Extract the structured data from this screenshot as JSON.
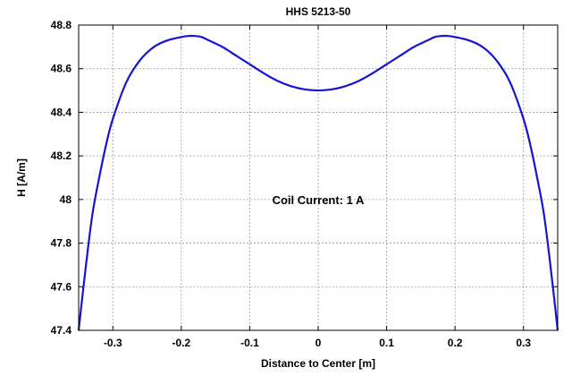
{
  "chart_data": {
    "type": "line",
    "title": "HHS 5213-50",
    "xlabel": "Distance to Center [m]",
    "ylabel": "H [A/m]",
    "annotation": "Coil Current: 1 A",
    "xlim": [
      -0.35,
      0.35
    ],
    "ylim": [
      47.4,
      48.8
    ],
    "xticks": [
      -0.3,
      -0.2,
      -0.1,
      0,
      0.1,
      0.2,
      0.3
    ],
    "xtick_labels": [
      "-0.3",
      "-0.2",
      "-0.1",
      "0",
      "0.1",
      "0.2",
      "0.3"
    ],
    "yticks": [
      47.4,
      47.6,
      47.8,
      48,
      48.2,
      48.4,
      48.6,
      48.8
    ],
    "ytick_labels": [
      "47.4",
      "47.6",
      "47.8",
      "48",
      "48.2",
      "48.4",
      "48.6",
      "48.8"
    ],
    "grid": true,
    "line_color": "#1414d2",
    "series": [
      {
        "x": [
          -0.35,
          -0.34,
          -0.33,
          -0.32,
          -0.31,
          -0.3,
          -0.28,
          -0.26,
          -0.24,
          -0.22,
          -0.2,
          -0.19,
          -0.18,
          -0.17,
          -0.16,
          -0.14,
          -0.12,
          -0.1,
          -0.08,
          -0.06,
          -0.04,
          -0.02,
          0.0,
          0.02,
          0.04,
          0.06,
          0.08,
          0.1,
          0.12,
          0.14,
          0.16,
          0.17,
          0.18,
          0.19,
          0.2,
          0.22,
          0.24,
          0.26,
          0.28,
          0.3,
          0.31,
          0.32,
          0.33,
          0.34,
          0.35
        ],
        "y": [
          47.4,
          47.68,
          47.93,
          48.1,
          48.25,
          48.37,
          48.54,
          48.64,
          48.7,
          48.73,
          48.745,
          48.75,
          48.75,
          48.745,
          48.73,
          48.7,
          48.66,
          48.62,
          48.58,
          48.545,
          48.52,
          48.505,
          48.5,
          48.505,
          48.52,
          48.545,
          48.58,
          48.62,
          48.66,
          48.7,
          48.73,
          48.745,
          48.75,
          48.75,
          48.745,
          48.73,
          48.7,
          48.64,
          48.54,
          48.37,
          48.25,
          48.1,
          47.93,
          47.68,
          47.4
        ]
      }
    ]
  }
}
